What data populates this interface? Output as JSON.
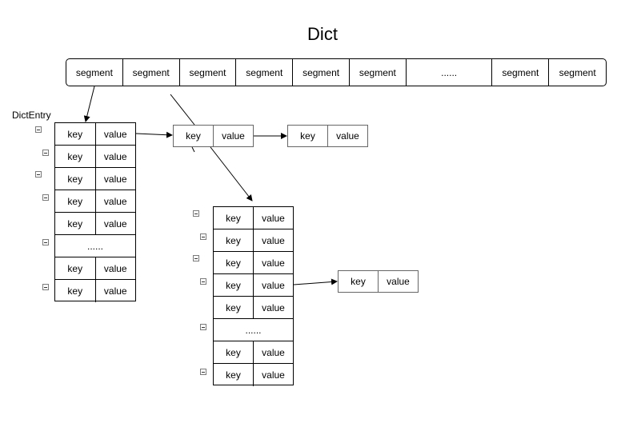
{
  "title": "Dict",
  "segments": [
    "segment",
    "segment",
    "segment",
    "segment",
    "segment",
    "segment",
    "......",
    "segment",
    "segment"
  ],
  "dict_entry_label": "DictEntry",
  "left_table": {
    "rows": [
      {
        "key": "key",
        "value": "value"
      },
      {
        "key": "key",
        "value": "value"
      },
      {
        "key": "key",
        "value": "value"
      },
      {
        "key": "key",
        "value": "value"
      },
      {
        "key": "key",
        "value": "value"
      },
      {
        "ellipsis": "......"
      },
      {
        "key": "key",
        "value": "value"
      },
      {
        "key": "key",
        "value": "value"
      }
    ]
  },
  "chain_1": {
    "key": "key",
    "value": "value"
  },
  "chain_2": {
    "key": "key",
    "value": "value"
  },
  "mid_table": {
    "rows": [
      {
        "key": "key",
        "value": "value"
      },
      {
        "key": "key",
        "value": "value"
      },
      {
        "key": "key",
        "value": "value"
      },
      {
        "key": "key",
        "value": "value"
      },
      {
        "key": "key",
        "value": "value"
      },
      {
        "ellipsis": "......"
      },
      {
        "key": "key",
        "value": "value"
      },
      {
        "key": "key",
        "value": "value"
      }
    ]
  },
  "chain_3": {
    "key": "key",
    "value": "value"
  }
}
